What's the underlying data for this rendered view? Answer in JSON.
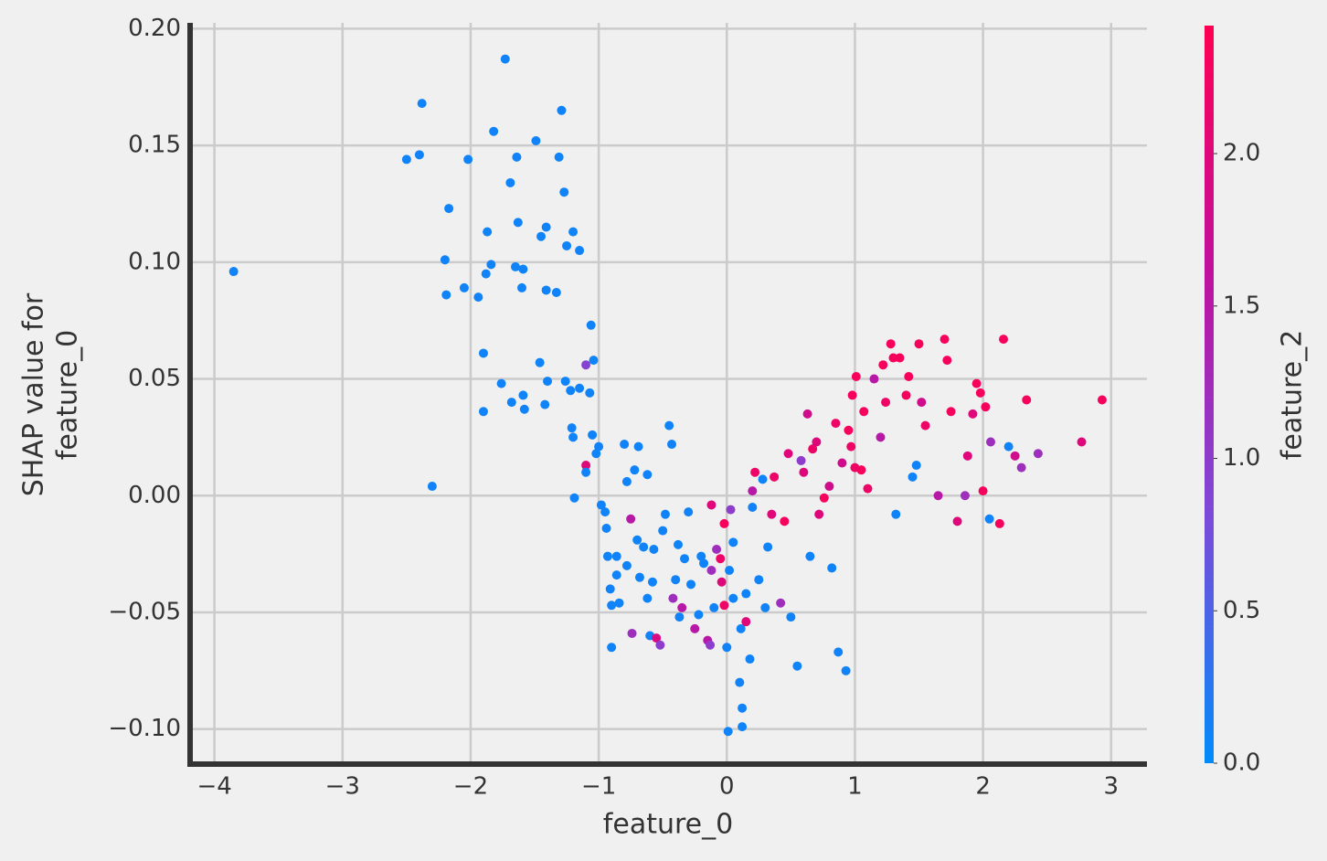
{
  "chart_data": {
    "type": "scatter",
    "xlabel": "feature_0",
    "ylabel": [
      "SHAP value for",
      "feature_0"
    ],
    "xlim": [
      -4.19,
      3.28
    ],
    "ylim": [
      -0.115,
      0.2025
    ],
    "xticks": [
      {
        "value": -4,
        "label": "−4"
      },
      {
        "value": -3,
        "label": "−3"
      },
      {
        "value": -2,
        "label": "−2"
      },
      {
        "value": -1,
        "label": "−1"
      },
      0,
      1,
      2,
      3
    ],
    "yticks": [
      {
        "value": -0.1,
        "label": "−0.10"
      },
      {
        "value": -0.05,
        "label": "−0.05"
      },
      {
        "value": 0,
        "label": "0.00"
      },
      {
        "value": 0.05,
        "label": "0.05"
      },
      {
        "value": 0.1,
        "label": "0.10"
      },
      {
        "value": 0.15,
        "label": "0.15"
      },
      {
        "value": 0.2,
        "label": "0.20"
      }
    ],
    "grid": true,
    "colorbar": {
      "label": "feature_2",
      "clim": [
        0,
        2.42
      ],
      "ticks": [
        {
          "value": 0,
          "label": "0.0"
        },
        {
          "value": 0.5,
          "label": "0.5"
        },
        {
          "value": 1,
          "label": "1.0"
        },
        {
          "value": 1.5,
          "label": "1.5"
        },
        {
          "value": 2,
          "label": "2.0"
        }
      ],
      "colormap": [
        "#008bfb",
        "#7c4ad9",
        "#c1109e",
        "#ff0052"
      ]
    },
    "x": [
      -3.85,
      -2.5,
      -2.4,
      -2.38,
      -2.2,
      -2.19,
      -2.17,
      -2.3,
      -2.02,
      -2.05,
      -1.94,
      -1.9,
      -1.88,
      -1.87,
      -1.84,
      -1.82,
      -1.9,
      -1.76,
      -1.73,
      -1.69,
      -1.68,
      -1.65,
      -1.64,
      -1.63,
      -1.6,
      -1.59,
      -1.59,
      -1.58,
      -1.49,
      -1.46,
      -1.45,
      -1.42,
      -1.41,
      -1.41,
      -1.4,
      -1.33,
      -1.31,
      -1.29,
      -1.27,
      -1.26,
      -1.25,
      -1.22,
      -1.21,
      -1.2,
      -1.2,
      -1.19,
      -1.15,
      -1.15,
      -1.1,
      -1.07,
      -1.06,
      -1.04,
      -1.05,
      -1.1,
      -1.1,
      -1.02,
      -1.0,
      -0.98,
      -0.95,
      -0.94,
      -0.93,
      -0.91,
      -0.9,
      -0.9,
      -0.86,
      -0.86,
      -0.84,
      -0.8,
      -0.78,
      -0.78,
      -0.75,
      -0.74,
      -0.72,
      -0.7,
      -0.69,
      -0.68,
      -0.65,
      -0.62,
      -0.62,
      -0.6,
      -0.58,
      -0.57,
      -0.55,
      -0.52,
      -0.5,
      -0.48,
      -0.45,
      -0.43,
      -0.42,
      -0.4,
      -0.38,
      -0.37,
      -0.35,
      -0.33,
      -0.3,
      -0.28,
      -0.25,
      -0.22,
      -0.2,
      -0.18,
      -0.15,
      -0.13,
      -0.12,
      -0.12,
      -0.1,
      -0.08,
      -0.05,
      -0.04,
      -0.02,
      -0.02,
      0.0,
      0.01,
      0.02,
      0.03,
      0.05,
      0.05,
      0.1,
      0.11,
      0.12,
      0.12,
      0.15,
      0.15,
      0.18,
      0.2,
      0.2,
      0.22,
      0.25,
      0.28,
      0.3,
      0.32,
      0.35,
      0.37,
      0.42,
      0.45,
      0.48,
      0.5,
      0.55,
      0.58,
      0.6,
      0.63,
      0.65,
      0.67,
      0.7,
      0.72,
      0.76,
      0.8,
      0.82,
      0.85,
      0.87,
      0.9,
      0.93,
      0.95,
      0.97,
      0.98,
      1.0,
      1.01,
      1.05,
      1.07,
      1.1,
      1.15,
      1.2,
      1.22,
      1.24,
      1.28,
      1.3,
      1.32,
      1.35,
      1.4,
      1.42,
      1.45,
      1.48,
      1.5,
      1.52,
      1.55,
      1.65,
      1.7,
      1.72,
      1.75,
      1.8,
      1.86,
      1.88,
      1.92,
      1.95,
      1.98,
      2.0,
      2.02,
      2.05,
      2.06,
      2.13,
      2.16,
      2.2,
      2.25,
      2.3,
      2.34,
      2.43,
      2.77,
      2.93
    ],
    "values": [
      0.096,
      0.144,
      0.146,
      0.168,
      0.101,
      0.086,
      0.123,
      0.004,
      0.144,
      0.089,
      0.085,
      0.061,
      0.095,
      0.113,
      0.099,
      0.156,
      0.036,
      0.048,
      0.187,
      0.134,
      0.04,
      0.098,
      0.145,
      0.117,
      0.089,
      0.043,
      0.097,
      0.037,
      0.152,
      0.057,
      0.111,
      0.039,
      0.088,
      0.115,
      0.049,
      0.087,
      0.145,
      0.165,
      0.13,
      0.049,
      0.107,
      0.045,
      0.029,
      0.025,
      0.113,
      -0.001,
      0.105,
      0.046,
      0.056,
      0.044,
      0.073,
      0.058,
      0.026,
      0.013,
      0.01,
      0.018,
      0.021,
      -0.004,
      -0.007,
      -0.014,
      -0.026,
      -0.04,
      -0.047,
      -0.065,
      -0.026,
      -0.034,
      -0.046,
      0.022,
      0.006,
      -0.03,
      -0.01,
      -0.059,
      0.011,
      -0.019,
      0.021,
      -0.035,
      -0.022,
      0.009,
      -0.044,
      -0.06,
      -0.037,
      -0.023,
      -0.061,
      -0.064,
      -0.015,
      -0.008,
      0.03,
      0.022,
      -0.044,
      -0.036,
      -0.021,
      -0.052,
      -0.048,
      -0.027,
      -0.007,
      -0.038,
      -0.057,
      -0.051,
      -0.026,
      -0.029,
      -0.062,
      -0.064,
      -0.032,
      -0.004,
      -0.048,
      -0.023,
      -0.027,
      -0.037,
      -0.047,
      -0.012,
      -0.065,
      -0.101,
      -0.032,
      -0.006,
      -0.02,
      -0.044,
      -0.08,
      -0.057,
      -0.091,
      -0.099,
      -0.054,
      -0.042,
      -0.07,
      -0.005,
      0.002,
      0.01,
      -0.036,
      0.007,
      -0.048,
      -0.022,
      -0.008,
      0.008,
      -0.046,
      -0.011,
      0.018,
      -0.052,
      -0.073,
      0.015,
      0.01,
      0.035,
      -0.026,
      0.02,
      0.023,
      -0.008,
      -0.001,
      0.004,
      -0.031,
      0.031,
      -0.067,
      0.014,
      -0.075,
      0.028,
      0.021,
      0.043,
      0.012,
      0.051,
      0.011,
      0.036,
      0.003,
      0.05,
      0.025,
      0.056,
      0.04,
      0.065,
      0.059,
      -0.008,
      0.059,
      0.043,
      0.051,
      0.008,
      0.013,
      0.065,
      0.04,
      0.03,
      0.0,
      0.067,
      0.058,
      0.036,
      -0.011,
      0.0,
      0.017,
      0.035,
      0.048,
      0.044,
      0.002,
      0.038,
      -0.01,
      0.023,
      -0.012,
      0.067,
      0.021,
      0.017,
      0.012,
      0.041,
      0.018,
      0.023,
      0.041
    ],
    "color_values": [
      0.1,
      0.1,
      0.1,
      0.1,
      0.1,
      0.1,
      0.1,
      0.1,
      0.1,
      0.1,
      0.1,
      0.1,
      0.1,
      0.1,
      0.1,
      0.1,
      0.1,
      0.1,
      0.1,
      0.1,
      0.1,
      0.1,
      0.1,
      0.1,
      0.1,
      0.1,
      0.1,
      0.1,
      0.1,
      0.1,
      0.1,
      0.1,
      0.1,
      0.1,
      0.1,
      0.1,
      0.1,
      0.1,
      0.1,
      0.1,
      0.1,
      0.1,
      0.1,
      0.1,
      0.1,
      0.1,
      0.1,
      0.1,
      0.9,
      0.1,
      0.1,
      0.1,
      0.1,
      2.0,
      0.1,
      0.1,
      0.1,
      0.1,
      0.1,
      0.1,
      0.1,
      0.1,
      0.1,
      0.1,
      0.1,
      0.1,
      0.1,
      0.1,
      0.1,
      0.1,
      1.5,
      1.2,
      0.1,
      0.1,
      0.1,
      0.1,
      0.1,
      0.1,
      0.1,
      0.1,
      0.1,
      0.1,
      1.9,
      1.0,
      0.1,
      0.1,
      0.1,
      0.1,
      1.2,
      0.1,
      0.1,
      0.1,
      1.5,
      0.1,
      0.1,
      0.1,
      1.5,
      0.1,
      0.1,
      0.1,
      1.5,
      1.0,
      1.2,
      2.0,
      0.1,
      1.2,
      2.2,
      2.0,
      2.2,
      2.3,
      0.1,
      0.1,
      0.1,
      1.0,
      0.1,
      0.1,
      0.1,
      0.1,
      0.1,
      0.1,
      2.0,
      0.1,
      0.1,
      0.1,
      1.5,
      2.2,
      0.1,
      0.1,
      0.1,
      0.1,
      2.0,
      2.2,
      1.2,
      2.3,
      2.0,
      0.1,
      0.1,
      1.0,
      2.0,
      1.8,
      0.1,
      2.2,
      2.0,
      2.0,
      2.3,
      1.8,
      0.1,
      2.2,
      0.1,
      1.8,
      0.1,
      2.3,
      2.2,
      2.3,
      2.2,
      2.3,
      2.3,
      2.3,
      2.2,
      1.5,
      1.5,
      2.3,
      2.2,
      2.3,
      2.3,
      0.1,
      2.3,
      2.3,
      2.3,
      0.1,
      0.1,
      2.3,
      1.8,
      2.2,
      1.5,
      2.3,
      2.3,
      2.3,
      2.0,
      1.2,
      2.0,
      2.0,
      2.3,
      2.3,
      2.3,
      2.3,
      0.1,
      1.2,
      2.3,
      2.3,
      0.1,
      1.8,
      1.2,
      2.3,
      1.2,
      2.0,
      2.3
    ]
  }
}
